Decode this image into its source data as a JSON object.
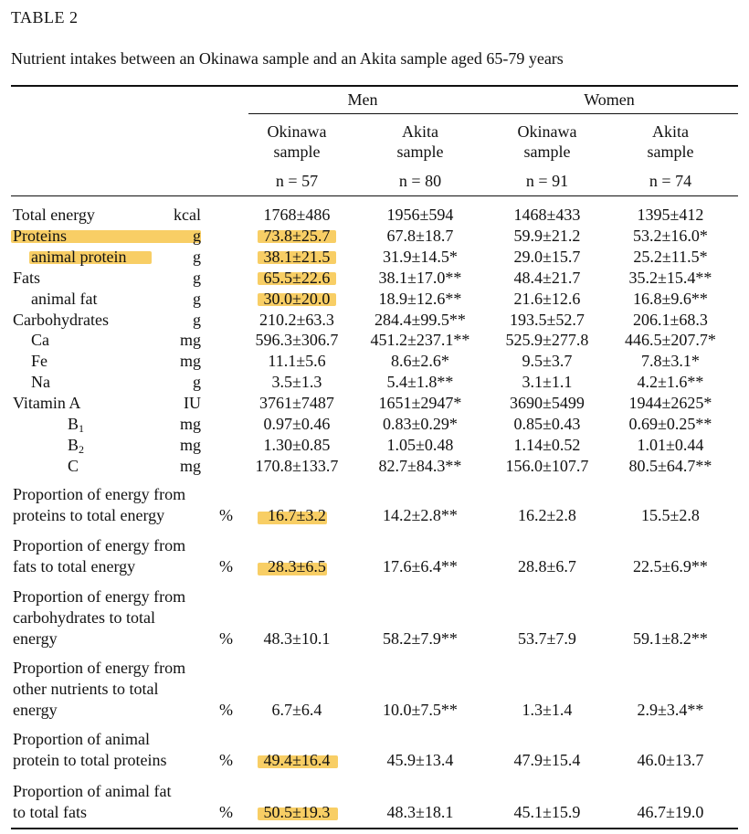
{
  "table_id": "TABLE 2",
  "caption": "Nutrient intakes between an Okinawa sample and an Akita sample aged 65-79 years",
  "groups": [
    "Men",
    "Women"
  ],
  "columns": [
    {
      "line1": "Okinawa",
      "line2": "sample",
      "n": "n = 57"
    },
    {
      "line1": "Akita",
      "line2": "sample",
      "n": "n = 80"
    },
    {
      "line1": "Okinawa",
      "line2": "sample",
      "n": "n = 91"
    },
    {
      "line1": "Akita",
      "line2": "sample",
      "n": "n = 74"
    }
  ],
  "rows": [
    {
      "label": "Total energy",
      "unit": "kcal",
      "values": [
        "1768±486",
        "1956±594",
        "1468±433",
        "1395±412"
      ]
    },
    {
      "label": "Proteins",
      "unit": "g",
      "values": [
        "73.8±25.7",
        "67.8±18.7",
        "59.9±21.2",
        "53.2±16.0*"
      ]
    },
    {
      "label": "animal protein",
      "unit": "g",
      "values": [
        "38.1±21.5",
        "31.9±14.5*",
        "29.0±15.7",
        "25.2±11.5*"
      ]
    },
    {
      "label": "Fats",
      "unit": "g",
      "values": [
        "65.5±22.6",
        "38.1±17.0**",
        "48.4±21.7",
        "35.2±15.4**"
      ]
    },
    {
      "label": "animal fat",
      "unit": "g",
      "values": [
        "30.0±20.0",
        "18.9±12.6**",
        "21.6±12.6",
        "16.8±9.6**"
      ]
    },
    {
      "label": "Carbohydrates",
      "unit": "g",
      "values": [
        "210.2±63.3",
        "284.4±99.5**",
        "193.5±52.7",
        "206.1±68.3"
      ]
    },
    {
      "label": "Ca",
      "unit": "mg",
      "values": [
        "596.3±306.7",
        "451.2±237.1**",
        "525.9±277.8",
        "446.5±207.7*"
      ]
    },
    {
      "label": "Fe",
      "unit": "mg",
      "values": [
        "11.1±5.6",
        "8.6±2.6*",
        "9.5±3.7",
        "7.8±3.1*"
      ]
    },
    {
      "label": "Na",
      "unit": "g",
      "values": [
        "3.5±1.3",
        "5.4±1.8**",
        "3.1±1.1",
        "4.2±1.6**"
      ]
    },
    {
      "label": "Vitamin A",
      "unit": "IU",
      "values": [
        "3761±7487",
        "1651±2947*",
        "3690±5499",
        "1944±2625*"
      ]
    },
    {
      "label": "B",
      "sub": "1",
      "unit": "mg",
      "values": [
        "0.97±0.46",
        "0.83±0.29*",
        "0.85±0.43",
        "0.69±0.25**"
      ]
    },
    {
      "label": "B",
      "sub": "2",
      "unit": "mg",
      "values": [
        "1.30±0.85",
        "1.05±0.48",
        "1.14±0.52",
        "1.01±0.44"
      ]
    },
    {
      "label": "C",
      "unit": "mg",
      "values": [
        "170.8±133.7",
        "82.7±84.3**",
        "156.0±107.7",
        "80.5±64.7**"
      ]
    }
  ],
  "proportions": [
    {
      "lines": [
        "Proportion of energy from",
        "proteins to total energy"
      ],
      "unit": "%",
      "values": [
        "16.7±3.2",
        "14.2±2.8**",
        "16.2±2.8",
        "15.5±2.8"
      ]
    },
    {
      "lines": [
        "Proportion of energy from",
        "fats to total energy"
      ],
      "unit": "%",
      "values": [
        "28.3±6.5",
        "17.6±6.4**",
        "28.8±6.7",
        "22.5±6.9**"
      ]
    },
    {
      "lines": [
        "Proportion of energy from",
        "carbohydrates to total",
        "energy"
      ],
      "unit": "%",
      "values": [
        "48.3±10.1",
        "58.2±7.9**",
        "53.7±7.9",
        "59.1±8.2**"
      ]
    },
    {
      "lines": [
        "Proportion of energy from",
        "other nutrients to total",
        "energy"
      ],
      "unit": "%",
      "values": [
        "6.7±6.4",
        "10.0±7.5**",
        "1.3±1.4",
        "2.9±3.4**"
      ]
    },
    {
      "lines": [
        "Proportion of animal",
        "protein to total proteins"
      ],
      "unit": "%",
      "values": [
        "49.4±16.4",
        "45.9±13.4",
        "47.9±15.4",
        "46.0±13.7"
      ]
    },
    {
      "lines": [
        "Proportion of animal fat",
        "to total fats"
      ],
      "unit": "%",
      "values": [
        "50.5±19.3",
        "48.3±18.1",
        "45.1±15.9",
        "46.7±19.0"
      ]
    }
  ],
  "highlight_color": "#f7c64a"
}
